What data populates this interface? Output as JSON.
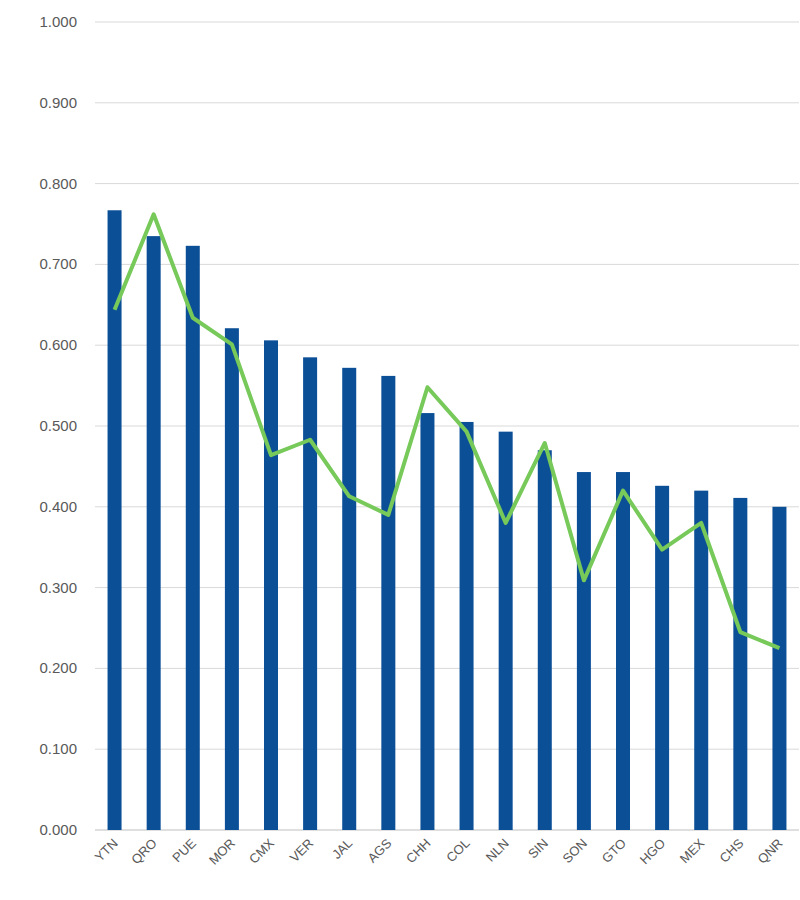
{
  "chart_data": {
    "type": "bar",
    "categories": [
      "YTN",
      "QRO",
      "PUE",
      "MOR",
      "CMX",
      "VER",
      "JAL",
      "AGS",
      "CHH",
      "COL",
      "NLN",
      "SIN",
      "SON",
      "GTO",
      "HGO",
      "MEX",
      "CHS",
      "QNR"
    ],
    "series": [
      {
        "type": "bar",
        "color": "#0b4f97",
        "values": [
          0.767,
          0.735,
          0.723,
          0.621,
          0.606,
          0.585,
          0.572,
          0.562,
          0.516,
          0.505,
          0.493,
          0.47,
          0.443,
          0.443,
          0.426,
          0.42,
          0.411,
          0.4
        ]
      },
      {
        "type": "line",
        "color": "#77c95a",
        "values": [
          0.644,
          0.762,
          0.634,
          0.601,
          0.464,
          0.483,
          0.413,
          0.39,
          0.548,
          0.493,
          0.38,
          0.479,
          0.309,
          0.42,
          0.347,
          0.38,
          0.245,
          0.225
        ]
      }
    ],
    "ylim": [
      0,
      1
    ],
    "yticks": [
      {
        "value": 0,
        "label": "0.000"
      },
      {
        "value": 0.1,
        "label": "0.100"
      },
      {
        "value": 0.2,
        "label": "0.200"
      },
      {
        "value": 0.3,
        "label": "0.300"
      },
      {
        "value": 0.4,
        "label": "0.400"
      },
      {
        "value": 0.5,
        "label": "0.500"
      },
      {
        "value": 0.6,
        "label": "0.600"
      },
      {
        "value": 0.7,
        "label": "0.700"
      },
      {
        "value": 0.8,
        "label": "0.800"
      },
      {
        "value": 0.9,
        "label": "0.900"
      },
      {
        "value": 1,
        "label": "1.000"
      }
    ],
    "grid": true
  }
}
